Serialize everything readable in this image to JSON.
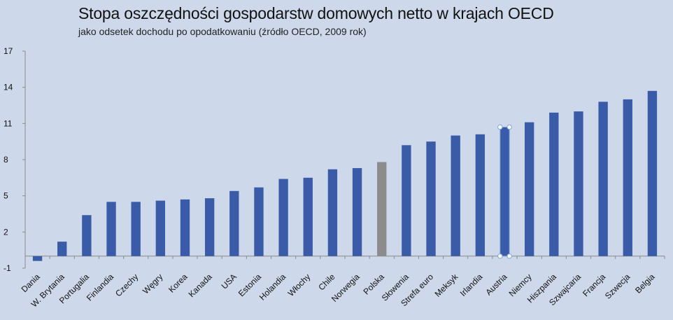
{
  "chart_data": {
    "type": "bar",
    "title": "Stopa oszczędności gospodarstw domowych netto w krajach OECD",
    "subtitle": "jako odsetek dochodu po opodatkowaniu (źródło  OECD, 2009 rok)",
    "xlabel": "",
    "ylabel": "",
    "ylim": [
      -1,
      17
    ],
    "yticks": [
      -1,
      2,
      5,
      8,
      11,
      14,
      17
    ],
    "grid": false,
    "categories": [
      "Dania",
      "W. Brytania",
      "Portugalia",
      "Finlandia",
      "Czechy",
      "Węgry",
      "Korea",
      "Kanada",
      "USA",
      "Estonia",
      "Holandia",
      "Włochy",
      "Chile",
      "Norwegia",
      "Polska",
      "Słowenia",
      "Strefa euro",
      "Meksyk",
      "Irlandia",
      "Austria",
      "Niemcy",
      "Hiszpania",
      "Szwajcaria",
      "Francja",
      "Szwecja",
      "Belgia"
    ],
    "series": [
      {
        "values": [
          -0.4,
          1.2,
          3.4,
          4.5,
          4.5,
          4.6,
          4.7,
          4.8,
          5.4,
          5.7,
          6.4,
          6.5,
          7.2,
          7.3,
          7.8,
          9.2,
          9.5,
          10.0,
          10.1,
          10.7,
          11.1,
          11.9,
          12.0,
          12.8,
          13.0,
          13.7
        ]
      }
    ],
    "highlight_category": "Polska",
    "selected_category": "Austria",
    "colors": {
      "background": "#cdd8ea",
      "bar": "#3a5ca8",
      "highlight_bar": "#8c8c8c",
      "axis": "#8a8a8a",
      "selection_handle": "#7fa8d8"
    }
  }
}
